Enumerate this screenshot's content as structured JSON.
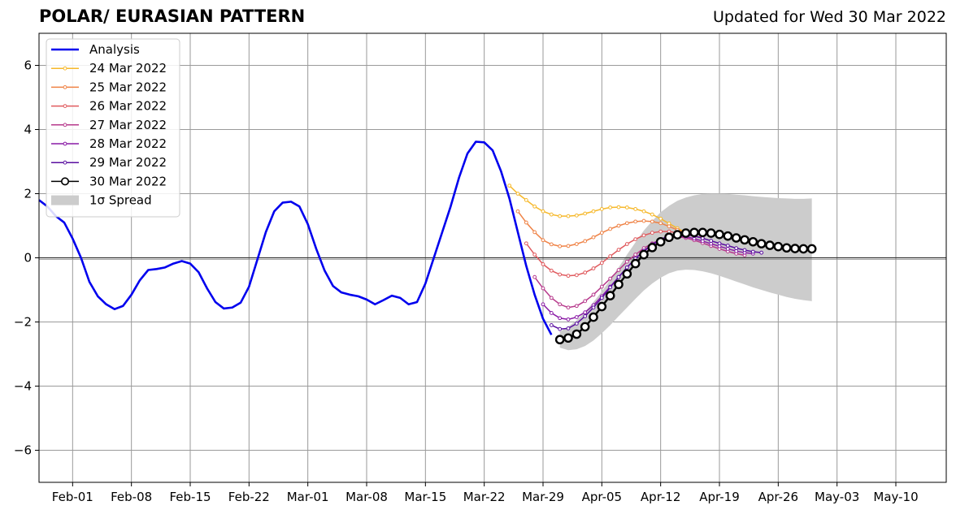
{
  "title": "POLAR/ EURASIAN  PATTERN",
  "subtitle": "Updated for Wed 30 Mar 2022",
  "chart_data": {
    "type": "line",
    "title": "POLAR/ EURASIAN  PATTERN",
    "subtitle": "Updated for Wed 30 Mar 2022",
    "xlim": [
      "2022-01-28",
      "2022-05-16"
    ],
    "ylim": [
      -7,
      7
    ],
    "grid": true,
    "legend_position": "top-left",
    "x_ticks": [
      "Feb-01",
      "Feb-08",
      "Feb-15",
      "Feb-22",
      "Mar-01",
      "Mar-08",
      "Mar-15",
      "Mar-22",
      "Mar-29",
      "Apr-05",
      "Apr-12",
      "Apr-19",
      "Apr-26",
      "May-03",
      "May-10"
    ],
    "y_ticks": [
      -6,
      -4,
      -2,
      0,
      2,
      4,
      6
    ],
    "y_tick_labels": [
      "−6",
      "−4",
      "−2",
      "0",
      "2",
      "4",
      "6"
    ],
    "analysis": {
      "name": "Analysis",
      "color": "#0000ee",
      "points": [
        [
          "2022-01-28",
          1.8
        ],
        [
          "2022-01-29",
          1.6
        ],
        [
          "2022-01-30",
          1.3
        ],
        [
          "2022-01-31",
          1.1
        ],
        [
          "2022-02-01",
          0.6
        ],
        [
          "2022-02-02",
          0.0
        ],
        [
          "2022-02-03",
          -0.75
        ],
        [
          "2022-02-04",
          -1.2
        ],
        [
          "2022-02-05",
          -1.45
        ],
        [
          "2022-02-06",
          -1.6
        ],
        [
          "2022-02-07",
          -1.5
        ],
        [
          "2022-02-08",
          -1.15
        ],
        [
          "2022-02-09",
          -0.7
        ],
        [
          "2022-02-10",
          -0.38
        ],
        [
          "2022-02-11",
          -0.35
        ],
        [
          "2022-02-12",
          -0.3
        ],
        [
          "2022-02-13",
          -0.18
        ],
        [
          "2022-02-14",
          -0.1
        ],
        [
          "2022-02-15",
          -0.18
        ],
        [
          "2022-02-16",
          -0.45
        ],
        [
          "2022-02-17",
          -0.95
        ],
        [
          "2022-02-18",
          -1.38
        ],
        [
          "2022-02-19",
          -1.58
        ],
        [
          "2022-02-20",
          -1.55
        ],
        [
          "2022-02-21",
          -1.4
        ],
        [
          "2022-02-22",
          -0.9
        ],
        [
          "2022-02-23",
          -0.05
        ],
        [
          "2022-02-24",
          0.8
        ],
        [
          "2022-02-25",
          1.45
        ],
        [
          "2022-02-26",
          1.72
        ],
        [
          "2022-02-27",
          1.75
        ],
        [
          "2022-02-28",
          1.6
        ],
        [
          "2022-03-01",
          1.05
        ],
        [
          "2022-03-02",
          0.28
        ],
        [
          "2022-03-03",
          -0.4
        ],
        [
          "2022-03-04",
          -0.88
        ],
        [
          "2022-03-05",
          -1.08
        ],
        [
          "2022-03-06",
          -1.15
        ],
        [
          "2022-03-07",
          -1.2
        ],
        [
          "2022-03-08",
          -1.3
        ],
        [
          "2022-03-09",
          -1.45
        ],
        [
          "2022-03-10",
          -1.32
        ],
        [
          "2022-03-11",
          -1.18
        ],
        [
          "2022-03-12",
          -1.25
        ],
        [
          "2022-03-13",
          -1.45
        ],
        [
          "2022-03-14",
          -1.38
        ],
        [
          "2022-03-15",
          -0.8
        ],
        [
          "2022-03-16",
          0.0
        ],
        [
          "2022-03-17",
          0.8
        ],
        [
          "2022-03-18",
          1.6
        ],
        [
          "2022-03-19",
          2.5
        ],
        [
          "2022-03-20",
          3.25
        ],
        [
          "2022-03-21",
          3.62
        ],
        [
          "2022-03-22",
          3.6
        ],
        [
          "2022-03-23",
          3.35
        ],
        [
          "2022-03-24",
          2.7
        ],
        [
          "2022-03-25",
          1.85
        ],
        [
          "2022-03-26",
          0.8
        ],
        [
          "2022-03-27",
          -0.25
        ],
        [
          "2022-03-28",
          -1.15
        ],
        [
          "2022-03-29",
          -1.9
        ],
        [
          "2022-03-30",
          -2.4
        ]
      ]
    },
    "forecasts": [
      {
        "name": "24 Mar 2022",
        "color": "#f6b82a",
        "start": "2022-03-25",
        "values": [
          2.25,
          2.0,
          1.8,
          1.6,
          1.45,
          1.35,
          1.3,
          1.3,
          1.32,
          1.38,
          1.45,
          1.52,
          1.57,
          1.58,
          1.57,
          1.52,
          1.45,
          1.35,
          1.22,
          1.07,
          0.92,
          0.78
        ]
      },
      {
        "name": "25 Mar 2022",
        "color": "#ef8245",
        "start": "2022-03-26",
        "values": [
          1.45,
          1.1,
          0.8,
          0.55,
          0.42,
          0.36,
          0.37,
          0.43,
          0.52,
          0.64,
          0.78,
          0.9,
          1.0,
          1.08,
          1.13,
          1.15,
          1.13,
          1.08,
          0.98,
          0.87,
          0.77,
          0.7
        ]
      },
      {
        "name": "26 Mar 2022",
        "color": "#e05a5e",
        "start": "2022-03-27",
        "values": [
          0.45,
          0.1,
          -0.2,
          -0.4,
          -0.52,
          -0.56,
          -0.54,
          -0.46,
          -0.33,
          -0.16,
          0.05,
          0.25,
          0.43,
          0.58,
          0.7,
          0.78,
          0.82,
          0.82,
          0.78,
          0.72,
          0.67,
          0.63
        ]
      },
      {
        "name": "27 Mar 2022",
        "color": "#b73a8c",
        "start": "2022-03-28",
        "values": [
          -0.6,
          -0.95,
          -1.25,
          -1.45,
          -1.55,
          -1.5,
          -1.35,
          -1.15,
          -0.9,
          -0.65,
          -0.38,
          -0.12,
          0.1,
          0.3,
          0.45,
          0.57,
          0.64,
          0.66,
          0.62,
          0.55,
          0.46,
          0.37,
          0.28,
          0.2,
          0.13,
          0.08
        ]
      },
      {
        "name": "28 Mar 2022",
        "color": "#8a1aa6",
        "start": "2022-03-29",
        "values": [
          -1.45,
          -1.72,
          -1.88,
          -1.92,
          -1.85,
          -1.7,
          -1.48,
          -1.2,
          -0.9,
          -0.6,
          -0.3,
          -0.02,
          0.2,
          0.4,
          0.55,
          0.65,
          0.68,
          0.66,
          0.6,
          0.52,
          0.44,
          0.36,
          0.28,
          0.21,
          0.16,
          0.13
        ]
      },
      {
        "name": "29 Mar 2022",
        "color": "#5a0fa0",
        "start": "2022-03-30",
        "values": [
          -2.1,
          -2.22,
          -2.2,
          -2.05,
          -1.82,
          -1.55,
          -1.25,
          -0.92,
          -0.6,
          -0.3,
          -0.02,
          0.22,
          0.42,
          0.58,
          0.68,
          0.72,
          0.72,
          0.68,
          0.61,
          0.53,
          0.45,
          0.38,
          0.3,
          0.24,
          0.19,
          0.16
        ]
      }
    ],
    "latest": {
      "name": "30 Mar 2022",
      "color": "#000000",
      "start": "2022-03-31",
      "values": [
        -2.55,
        -2.5,
        -2.38,
        -2.15,
        -1.85,
        -1.52,
        -1.18,
        -0.83,
        -0.5,
        -0.18,
        0.1,
        0.32,
        0.5,
        0.64,
        0.72,
        0.77,
        0.79,
        0.79,
        0.77,
        0.73,
        0.68,
        0.62,
        0.56,
        0.5,
        0.44,
        0.39,
        0.35,
        0.31,
        0.29,
        0.28,
        0.28
      ]
    },
    "spread": {
      "name": "1σ Spread",
      "color": "#cccccc",
      "start": "2022-03-31",
      "upper": [
        -2.3,
        -2.15,
        -1.95,
        -1.68,
        -1.38,
        -1.05,
        -0.68,
        -0.3,
        0.1,
        0.48,
        0.85,
        1.15,
        1.42,
        1.62,
        1.78,
        1.88,
        1.95,
        1.99,
        2.0,
        2.0,
        1.99,
        1.97,
        1.95,
        1.92,
        1.9,
        1.88,
        1.86,
        1.85,
        1.84,
        1.84,
        1.85
      ],
      "lower": [
        -2.8,
        -2.88,
        -2.85,
        -2.75,
        -2.58,
        -2.35,
        -2.1,
        -1.82,
        -1.55,
        -1.28,
        -1.02,
        -0.8,
        -0.62,
        -0.48,
        -0.4,
        -0.37,
        -0.38,
        -0.42,
        -0.48,
        -0.56,
        -0.65,
        -0.74,
        -0.83,
        -0.92,
        -1.0,
        -1.08,
        -1.15,
        -1.22,
        -1.28,
        -1.32,
        -1.35
      ]
    },
    "legend": [
      "Analysis",
      "24 Mar 2022",
      "25 Mar 2022",
      "26 Mar 2022",
      "27 Mar 2022",
      "28 Mar 2022",
      "29 Mar 2022",
      "30 Mar 2022",
      "1σ Spread"
    ]
  }
}
